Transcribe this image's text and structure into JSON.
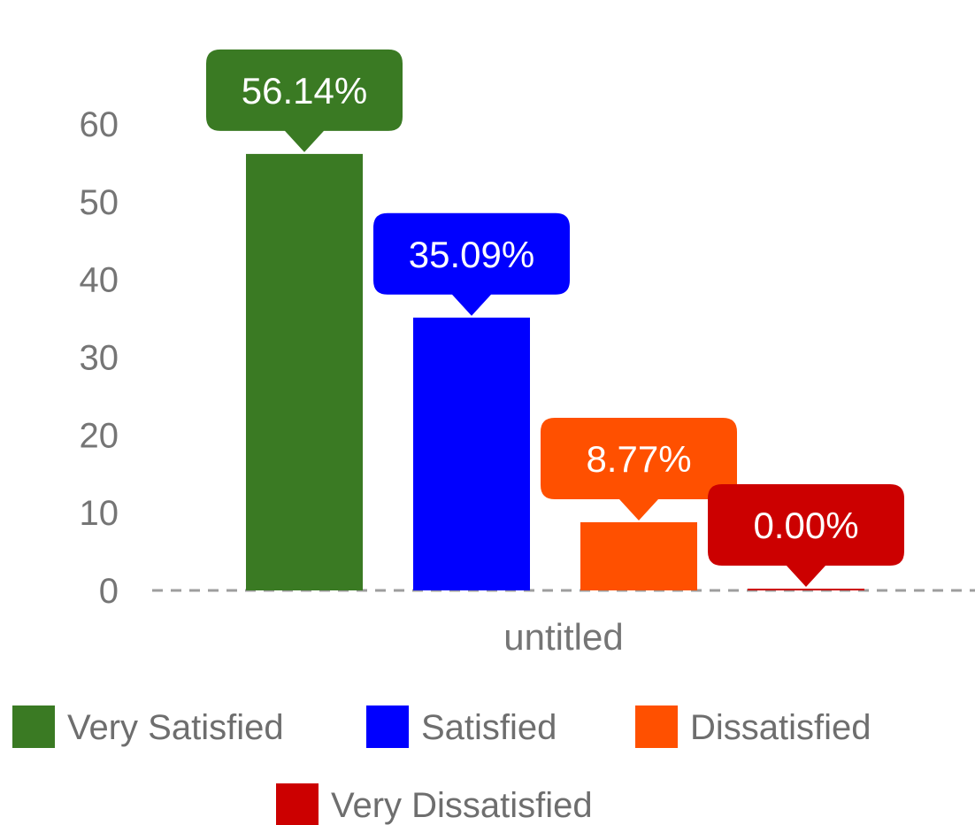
{
  "chart_data": {
    "type": "bar",
    "categories": [
      "untitled"
    ],
    "series": [
      {
        "name": "Very Satisfied",
        "values": [
          56.14
        ],
        "color": "#3a7a23",
        "label": "56.14%"
      },
      {
        "name": "Satisfied",
        "values": [
          35.09
        ],
        "color": "#0000ff",
        "label": "35.09%"
      },
      {
        "name": "Dissatisfied",
        "values": [
          8.77
        ],
        "color": "#ff5000",
        "label": "8.77%"
      },
      {
        "name": "Very Dissatisfied",
        "values": [
          0.0
        ],
        "color": "#cc0000",
        "label": "0.00%"
      }
    ],
    "y_ticks": [
      "0",
      "10",
      "20",
      "30",
      "40",
      "50",
      "60"
    ],
    "ylim": [
      0,
      60
    ],
    "grid": false,
    "legend_position": "bottom"
  }
}
